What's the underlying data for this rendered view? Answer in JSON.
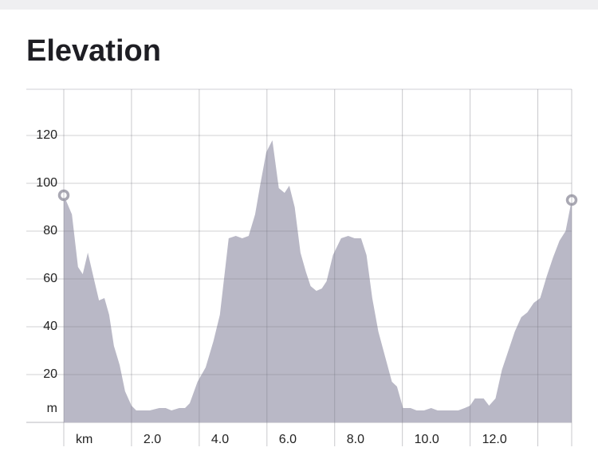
{
  "chart_data": {
    "type": "area",
    "title": "Elevation",
    "x": [
      0,
      0.24,
      0.42,
      0.56,
      0.71,
      0.89,
      1.04,
      1.2,
      1.34,
      1.48,
      1.65,
      1.81,
      2.0,
      2.14,
      2.35,
      2.54,
      2.82,
      3.01,
      3.18,
      3.41,
      3.58,
      3.72,
      3.95,
      4.19,
      4.42,
      4.61,
      4.87,
      5.08,
      5.27,
      5.46,
      5.65,
      5.81,
      5.98,
      6.16,
      6.35,
      6.52,
      6.66,
      6.82,
      6.99,
      7.15,
      7.29,
      7.46,
      7.62,
      7.76,
      7.95,
      8.19,
      8.4,
      8.59,
      8.78,
      8.94,
      9.11,
      9.29,
      9.48,
      9.69,
      9.84,
      10.02,
      10.24,
      10.42,
      10.64,
      10.85,
      11.04,
      11.22,
      11.41,
      11.65,
      11.84,
      12.0,
      12.14,
      12.4,
      12.56,
      12.75,
      12.94,
      13.13,
      13.32,
      13.51,
      13.69,
      13.88,
      14.07,
      14.26,
      14.45,
      14.64,
      14.82,
      15
    ],
    "values": [
      95,
      87,
      65,
      62,
      71,
      60,
      51,
      52,
      45,
      32,
      24,
      13,
      7,
      5,
      5,
      5,
      6,
      6,
      5,
      6,
      6,
      8,
      17,
      23,
      34,
      45,
      77,
      78,
      77,
      78,
      87,
      100,
      113,
      118,
      98,
      96,
      99,
      90,
      71,
      63,
      57,
      55,
      56,
      59,
      70,
      77,
      78,
      77,
      77,
      70,
      52,
      38,
      28,
      17,
      15,
      6,
      6,
      5,
      5,
      6,
      5,
      5,
      5,
      5,
      6,
      7,
      10,
      10,
      7,
      10,
      22,
      30,
      38,
      44,
      46,
      50,
      52,
      61,
      69,
      76,
      80,
      93
    ],
    "color": "#b9b8c6",
    "xlim": [
      0,
      15
    ],
    "xticks": [
      {
        "value": 0,
        "label": "km"
      },
      {
        "value": 2,
        "label": "2.0"
      },
      {
        "value": 4,
        "label": "4.0"
      },
      {
        "value": 6,
        "label": "6.0"
      },
      {
        "value": 8,
        "label": "8.0"
      },
      {
        "value": 10,
        "label": "10.0"
      },
      {
        "value": 12,
        "label": "12.0"
      },
      {
        "value": 14
      }
    ],
    "ylim": [
      0,
      140
    ],
    "yticks": [
      {
        "value": 0,
        "label": "m"
      },
      20,
      40,
      60,
      80,
      100,
      120
    ],
    "grid": true
  }
}
